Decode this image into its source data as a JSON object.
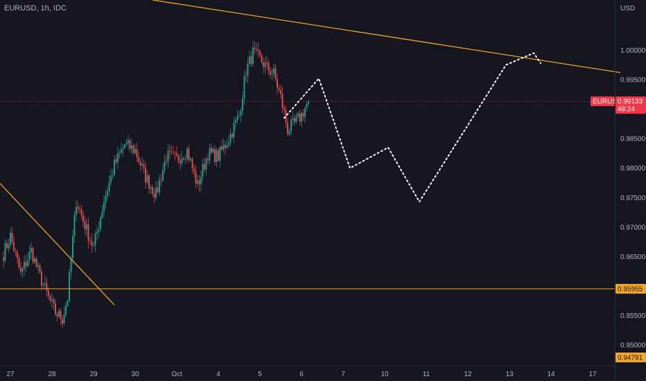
{
  "header": {
    "symbol": "EURUSD, 1h, IDC",
    "currency": "USD"
  },
  "chart_data": {
    "type": "candlestick",
    "y_axis": {
      "range": [
        0.9465,
        1.0085
      ],
      "ticks": [
        {
          "value": 1.0,
          "label": "1.00000"
        },
        {
          "value": 0.995,
          "label": "0.99500"
        },
        {
          "value": 0.985,
          "label": "0.98500"
        },
        {
          "value": 0.98,
          "label": "0.98000"
        },
        {
          "value": 0.975,
          "label": "0.97500"
        },
        {
          "value": 0.97,
          "label": "0.97000"
        },
        {
          "value": 0.965,
          "label": "0.96500"
        },
        {
          "value": 0.955,
          "label": "0.95500"
        },
        {
          "value": 0.95,
          "label": "0.95000"
        }
      ]
    },
    "x_axis": {
      "labels": [
        {
          "label": "27",
          "bar": 4
        },
        {
          "label": "28",
          "bar": 28
        },
        {
          "label": "29",
          "bar": 52
        },
        {
          "label": "30",
          "bar": 76
        },
        {
          "label": "Oct",
          "bar": 100
        },
        {
          "label": "4",
          "bar": 124
        },
        {
          "label": "5",
          "bar": 148
        },
        {
          "label": "6",
          "bar": 172
        },
        {
          "label": "7",
          "bar": 196
        },
        {
          "label": "10",
          "bar": 220
        },
        {
          "label": "11",
          "bar": 244
        },
        {
          "label": "12",
          "bar": 268
        },
        {
          "label": "13",
          "bar": 292
        },
        {
          "label": "14",
          "bar": 316
        },
        {
          "label": "17",
          "bar": 340
        }
      ]
    },
    "price_anchors": [
      {
        "bar": 0,
        "price": 0.9655
      },
      {
        "bar": 4,
        "price": 0.9685
      },
      {
        "bar": 10,
        "price": 0.962
      },
      {
        "bar": 16,
        "price": 0.966
      },
      {
        "bar": 20,
        "price": 0.9625
      },
      {
        "bar": 26,
        "price": 0.958
      },
      {
        "bar": 30,
        "price": 0.9555
      },
      {
        "bar": 34,
        "price": 0.9545
      },
      {
        "bar": 37,
        "price": 0.958
      },
      {
        "bar": 42,
        "price": 0.9745
      },
      {
        "bar": 48,
        "price": 0.9695
      },
      {
        "bar": 52,
        "price": 0.9665
      },
      {
        "bar": 58,
        "price": 0.9745
      },
      {
        "bar": 64,
        "price": 0.9805
      },
      {
        "bar": 70,
        "price": 0.984
      },
      {
        "bar": 76,
        "price": 0.983
      },
      {
        "bar": 82,
        "price": 0.9785
      },
      {
        "bar": 88,
        "price": 0.9755
      },
      {
        "bar": 94,
        "price": 0.982
      },
      {
        "bar": 100,
        "price": 0.9815
      },
      {
        "bar": 106,
        "price": 0.983
      },
      {
        "bar": 112,
        "price": 0.977
      },
      {
        "bar": 118,
        "price": 0.9825
      },
      {
        "bar": 124,
        "price": 0.982
      },
      {
        "bar": 130,
        "price": 0.985
      },
      {
        "bar": 136,
        "price": 0.989
      },
      {
        "bar": 140,
        "price": 0.9965
      },
      {
        "bar": 144,
        "price": 0.9995
      },
      {
        "bar": 148,
        "price": 0.9985
      },
      {
        "bar": 152,
        "price": 0.997
      },
      {
        "bar": 156,
        "price": 0.996
      },
      {
        "bar": 160,
        "price": 0.992
      },
      {
        "bar": 164,
        "price": 0.9865
      },
      {
        "bar": 168,
        "price": 0.9875
      },
      {
        "bar": 172,
        "price": 0.989
      },
      {
        "bar": 176,
        "price": 0.99133
      }
    ],
    "current_price": {
      "value": 0.99133,
      "label": "0.99133",
      "symbol": "EURUSD",
      "countdown": "48:24",
      "color": "#f23645"
    },
    "horizontal_level": {
      "value": 0.95955,
      "label": "0.95955",
      "color": "#f5a623"
    },
    "low_marker": {
      "value": 0.94791,
      "label": "0.94791",
      "color": "#f5a623"
    },
    "trendlines": [
      {
        "from": {
          "bar": -2,
          "price": 0.9774
        },
        "to": {
          "bar": 64,
          "price": 0.9568
        },
        "color": "#f5a623"
      },
      {
        "from": {
          "bar": 86,
          "price": 1.0085
        },
        "to": {
          "bar": 356,
          "price": 0.9962
        },
        "color": "#f5a623"
      }
    ],
    "projection": {
      "color": "#ffffff",
      "points": [
        {
          "bar": 162,
          "price": 0.9885
        },
        {
          "bar": 182,
          "price": 0.9952
        },
        {
          "bar": 200,
          "price": 0.98
        },
        {
          "bar": 222,
          "price": 0.9835
        },
        {
          "bar": 240,
          "price": 0.9743
        },
        {
          "bar": 290,
          "price": 0.9975
        },
        {
          "bar": 306,
          "price": 0.9995
        },
        {
          "bar": 310,
          "price": 0.9978
        }
      ]
    },
    "colors": {
      "background": "#161620",
      "up": "#26a69a",
      "down": "#ef5350",
      "axis_text": "#b2b5be",
      "separator": "#2a2e39"
    }
  }
}
